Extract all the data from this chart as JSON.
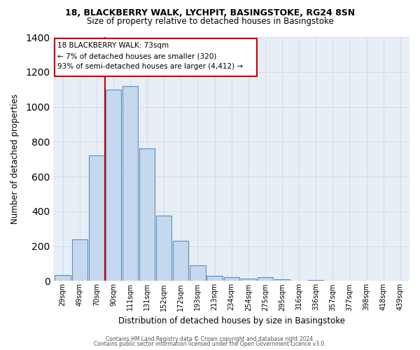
{
  "title1": "18, BLACKBERRY WALK, LYCHPIT, BASINGSTOKE, RG24 8SN",
  "title2": "Size of property relative to detached houses in Basingstoke",
  "xlabel": "Distribution of detached houses by size in Basingstoke",
  "ylabel": "Number of detached properties",
  "bar_labels": [
    "29sqm",
    "49sqm",
    "70sqm",
    "90sqm",
    "111sqm",
    "131sqm",
    "152sqm",
    "172sqm",
    "193sqm",
    "213sqm",
    "234sqm",
    "254sqm",
    "275sqm",
    "295sqm",
    "316sqm",
    "336sqm",
    "357sqm",
    "377sqm",
    "398sqm",
    "418sqm",
    "439sqm"
  ],
  "bar_values": [
    35,
    240,
    720,
    1100,
    1120,
    760,
    375,
    230,
    90,
    30,
    20,
    15,
    20,
    10,
    2,
    5,
    2,
    0,
    0,
    0,
    0
  ],
  "bar_color": "#c5d8ed",
  "bar_edgecolor": "#5a8fc0",
  "annotation_text_line1": "18 BLACKBERRY WALK: 73sqm",
  "annotation_text_line2": "← 7% of detached houses are smaller (320)",
  "annotation_text_line3": "93% of semi-detached houses are larger (4,412) →",
  "annotation_box_color": "#ffffff",
  "annotation_box_edgecolor": "#cc0000",
  "vline_color": "#cc0000",
  "ylim": [
    0,
    1400
  ],
  "yticks": [
    0,
    200,
    400,
    600,
    800,
    1000,
    1200,
    1400
  ],
  "footer1": "Contains HM Land Registry data © Crown copyright and database right 2024.",
  "footer2": "Contains public sector information licensed under the Open Government Licence v3.0.",
  "bg_color": "#ffffff",
  "grid_color": "#d0d8e4"
}
